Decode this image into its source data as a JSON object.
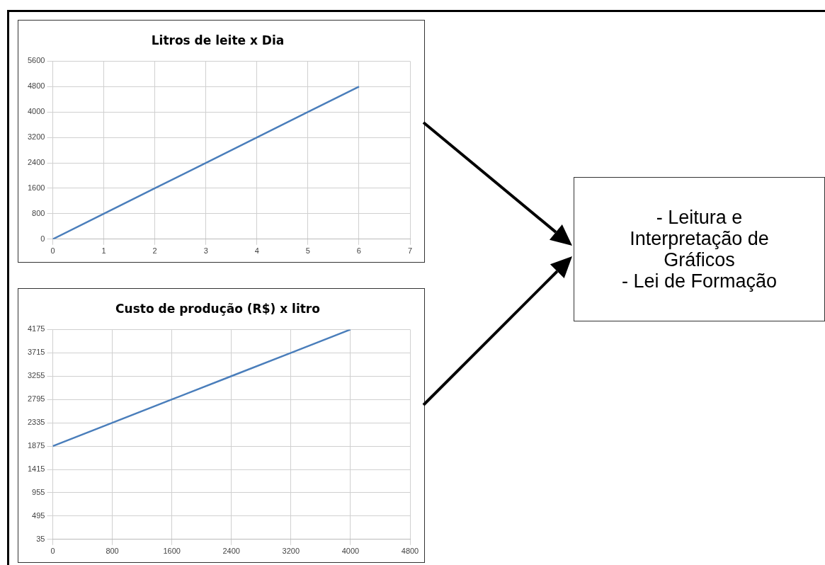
{
  "chart_data": [
    {
      "type": "line",
      "title": "Litros de leite x Dia",
      "x": [
        0,
        1,
        2,
        3,
        4,
        5,
        6
      ],
      "values": [
        0,
        800,
        1600,
        2400,
        3200,
        4000,
        4800
      ],
      "color": "#4a7ebb",
      "xlim": [
        0,
        7
      ],
      "xticks": [
        0,
        1,
        2,
        3,
        4,
        5,
        6,
        7
      ],
      "ylim": [
        0,
        5600
      ],
      "yticks": [
        0,
        800,
        1600,
        2400,
        3200,
        4000,
        4800,
        5600
      ],
      "grid": true,
      "marker": "none",
      "line_style": "solid"
    },
    {
      "type": "line",
      "title": "Custo de produção (R$) x litro",
      "x": [
        0,
        800,
        1600,
        2400,
        3200,
        4000
      ],
      "values": [
        1875,
        2335,
        2795,
        3255,
        3715,
        4175
      ],
      "color": "#4a7ebb",
      "xlim": [
        0,
        4800
      ],
      "xticks": [
        0,
        800,
        1600,
        2400,
        3200,
        4000,
        4800
      ],
      "ylim": [
        35,
        4175
      ],
      "yticks": [
        35,
        495,
        955,
        1415,
        1875,
        2335,
        2795,
        3255,
        3715,
        4175
      ],
      "grid": true,
      "marker": "none",
      "line_style": "solid"
    },
    {
      "type": "other",
      "annotations": [
        "- Leitura e Interpretação de Gráficos",
        "- Lei de Formação"
      ]
    }
  ]
}
